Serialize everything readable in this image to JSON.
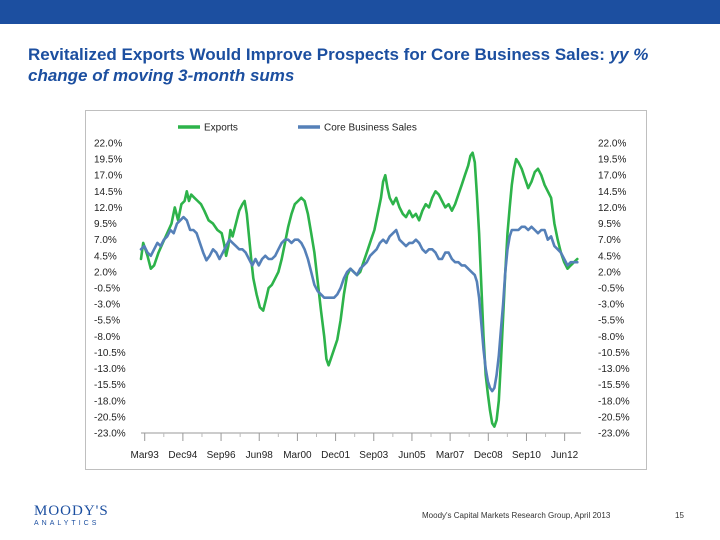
{
  "slide": {
    "title_main": "Revitalized Exports Would Improve Prospects for Core Business Sales: ",
    "title_sub": "yy % change of moving 3-month sums",
    "footer_source": "Moody's Capital Markets Research Group, April 2013",
    "page_number": "15",
    "logo_main": "MOODY'S",
    "logo_sub": "ANALYTICS",
    "accent_color": "#1c4fa0"
  },
  "chart_data": {
    "type": "line",
    "title": "",
    "xlabel": "",
    "ylabel": "",
    "ylim": [
      -23.0,
      22.0
    ],
    "y_ticks": [
      "22.0%",
      "19.5%",
      "17.0%",
      "14.5%",
      "12.0%",
      "9.5%",
      "7.0%",
      "4.5%",
      "2.0%",
      "-0.5%",
      "-3.0%",
      "-5.5%",
      "-8.0%",
      "-10.5%",
      "-13.0%",
      "-15.5%",
      "-18.0%",
      "-20.5%",
      "-23.0%"
    ],
    "y_tick_values": [
      22.0,
      19.5,
      17.0,
      14.5,
      12.0,
      9.5,
      7.0,
      4.5,
      2.0,
      -0.5,
      -3.0,
      -5.5,
      -8.0,
      -10.5,
      -13.0,
      -15.5,
      -18.0,
      -20.5,
      -23.0
    ],
    "x_range": [
      1993.0,
      2013.17
    ],
    "x_ticks": [
      {
        "label": "Mar93",
        "x": 1993.17
      },
      {
        "label": "Dec94",
        "x": 1994.92
      },
      {
        "label": "Sep96",
        "x": 1996.67
      },
      {
        "label": "Jun98",
        "x": 1998.42
      },
      {
        "label": "Mar00",
        "x": 2000.17
      },
      {
        "label": "Dec01",
        "x": 2001.92
      },
      {
        "label": "Sep03",
        "x": 2003.67
      },
      {
        "label": "Jun05",
        "x": 2005.42
      },
      {
        "label": "Mar07",
        "x": 2007.17
      },
      {
        "label": "Dec08",
        "x": 2008.92
      },
      {
        "label": "Sep10",
        "x": 2010.67
      },
      {
        "label": "Jun12",
        "x": 2012.42
      }
    ],
    "legend_position": "top",
    "series": [
      {
        "name": "Exports",
        "color": "#2db34a",
        "points": [
          [
            1993.0,
            4.0
          ],
          [
            1993.1,
            6.5
          ],
          [
            1993.2,
            5.5
          ],
          [
            1993.3,
            4.5
          ],
          [
            1993.45,
            2.5
          ],
          [
            1993.6,
            3.0
          ],
          [
            1993.8,
            5.0
          ],
          [
            1994.0,
            6.5
          ],
          [
            1994.2,
            8.0
          ],
          [
            1994.4,
            9.5
          ],
          [
            1994.55,
            12.0
          ],
          [
            1994.7,
            10.0
          ],
          [
            1994.85,
            12.5
          ],
          [
            1995.0,
            13.0
          ],
          [
            1995.1,
            14.5
          ],
          [
            1995.2,
            13.0
          ],
          [
            1995.3,
            14.0
          ],
          [
            1995.45,
            13.5
          ],
          [
            1995.6,
            13.0
          ],
          [
            1995.75,
            12.5
          ],
          [
            1995.9,
            11.5
          ],
          [
            1996.1,
            10.0
          ],
          [
            1996.3,
            9.5
          ],
          [
            1996.5,
            8.5
          ],
          [
            1996.7,
            8.0
          ],
          [
            1996.8,
            6.5
          ],
          [
            1996.9,
            4.5
          ],
          [
            1997.0,
            6.0
          ],
          [
            1997.1,
            8.5
          ],
          [
            1997.2,
            7.5
          ],
          [
            1997.35,
            9.5
          ],
          [
            1997.5,
            11.5
          ],
          [
            1997.65,
            12.5
          ],
          [
            1997.75,
            13.0
          ],
          [
            1997.85,
            11.0
          ],
          [
            1997.95,
            7.5
          ],
          [
            1998.05,
            4.0
          ],
          [
            1998.15,
            1.0
          ],
          [
            1998.3,
            -1.5
          ],
          [
            1998.45,
            -3.5
          ],
          [
            1998.6,
            -4.0
          ],
          [
            1998.75,
            -2.0
          ],
          [
            1998.85,
            -0.5
          ],
          [
            1999.0,
            0.0
          ],
          [
            1999.15,
            1.0
          ],
          [
            1999.3,
            2.0
          ],
          [
            1999.45,
            4.0
          ],
          [
            1999.6,
            6.5
          ],
          [
            1999.75,
            9.0
          ],
          [
            1999.9,
            11.0
          ],
          [
            2000.05,
            12.5
          ],
          [
            2000.2,
            13.0
          ],
          [
            2000.35,
            13.5
          ],
          [
            2000.5,
            13.0
          ],
          [
            2000.65,
            11.0
          ],
          [
            2000.8,
            8.0
          ],
          [
            2000.95,
            5.0
          ],
          [
            2001.1,
            0.5
          ],
          [
            2001.25,
            -4.0
          ],
          [
            2001.4,
            -8.0
          ],
          [
            2001.5,
            -11.5
          ],
          [
            2001.6,
            -12.5
          ],
          [
            2001.7,
            -11.5
          ],
          [
            2001.85,
            -10.0
          ],
          [
            2002.0,
            -8.5
          ],
          [
            2002.15,
            -5.5
          ],
          [
            2002.3,
            -1.5
          ],
          [
            2002.45,
            1.5
          ],
          [
            2002.6,
            2.5
          ],
          [
            2002.75,
            2.0
          ],
          [
            2002.9,
            1.5
          ],
          [
            2003.05,
            2.0
          ],
          [
            2003.2,
            3.5
          ],
          [
            2003.4,
            5.5
          ],
          [
            2003.55,
            7.0
          ],
          [
            2003.7,
            8.5
          ],
          [
            2003.85,
            11.0
          ],
          [
            2004.0,
            13.5
          ],
          [
            2004.1,
            16.0
          ],
          [
            2004.2,
            17.0
          ],
          [
            2004.3,
            15.0
          ],
          [
            2004.4,
            13.5
          ],
          [
            2004.55,
            12.5
          ],
          [
            2004.7,
            13.5
          ],
          [
            2004.85,
            12.0
          ],
          [
            2005.0,
            11.0
          ],
          [
            2005.15,
            10.5
          ],
          [
            2005.3,
            11.5
          ],
          [
            2005.45,
            10.5
          ],
          [
            2005.6,
            11.0
          ],
          [
            2005.75,
            10.0
          ],
          [
            2005.9,
            11.5
          ],
          [
            2006.05,
            12.5
          ],
          [
            2006.2,
            12.0
          ],
          [
            2006.35,
            13.5
          ],
          [
            2006.5,
            14.5
          ],
          [
            2006.65,
            14.0
          ],
          [
            2006.8,
            13.0
          ],
          [
            2006.95,
            12.0
          ],
          [
            2007.1,
            12.5
          ],
          [
            2007.25,
            11.5
          ],
          [
            2007.4,
            12.5
          ],
          [
            2007.55,
            14.0
          ],
          [
            2007.7,
            15.5
          ],
          [
            2007.85,
            17.0
          ],
          [
            2008.0,
            18.5
          ],
          [
            2008.1,
            20.0
          ],
          [
            2008.2,
            20.5
          ],
          [
            2008.3,
            19.0
          ],
          [
            2008.4,
            14.0
          ],
          [
            2008.5,
            8.0
          ],
          [
            2008.6,
            0.0
          ],
          [
            2008.7,
            -8.0
          ],
          [
            2008.8,
            -14.0
          ],
          [
            2008.9,
            -17.0
          ],
          [
            2009.0,
            -19.5
          ],
          [
            2009.1,
            -21.5
          ],
          [
            2009.2,
            -22.0
          ],
          [
            2009.3,
            -21.0
          ],
          [
            2009.4,
            -18.0
          ],
          [
            2009.5,
            -12.0
          ],
          [
            2009.6,
            -5.0
          ],
          [
            2009.7,
            2.0
          ],
          [
            2009.8,
            8.0
          ],
          [
            2009.9,
            12.0
          ],
          [
            2010.0,
            15.5
          ],
          [
            2010.1,
            18.0
          ],
          [
            2010.2,
            19.5
          ],
          [
            2010.3,
            19.0
          ],
          [
            2010.45,
            18.0
          ],
          [
            2010.6,
            16.5
          ],
          [
            2010.75,
            15.0
          ],
          [
            2010.9,
            16.0
          ],
          [
            2011.05,
            17.5
          ],
          [
            2011.2,
            18.0
          ],
          [
            2011.35,
            17.0
          ],
          [
            2011.5,
            15.5
          ],
          [
            2011.65,
            14.5
          ],
          [
            2011.8,
            13.5
          ],
          [
            2011.95,
            9.5
          ],
          [
            2012.1,
            7.0
          ],
          [
            2012.25,
            5.0
          ],
          [
            2012.4,
            3.5
          ],
          [
            2012.55,
            2.5
          ],
          [
            2012.7,
            3.0
          ],
          [
            2012.85,
            3.5
          ],
          [
            2013.0,
            4.0
          ]
        ]
      },
      {
        "name": "Core Business Sales",
        "color": "#5580b8",
        "points": [
          [
            1993.0,
            5.5
          ],
          [
            1993.15,
            6.0
          ],
          [
            1993.3,
            5.0
          ],
          [
            1993.45,
            4.5
          ],
          [
            1993.6,
            5.5
          ],
          [
            1993.75,
            6.5
          ],
          [
            1993.9,
            6.0
          ],
          [
            1994.05,
            7.0
          ],
          [
            1994.2,
            7.5
          ],
          [
            1994.35,
            8.5
          ],
          [
            1994.5,
            8.0
          ],
          [
            1994.65,
            9.5
          ],
          [
            1994.8,
            10.0
          ],
          [
            1994.95,
            10.5
          ],
          [
            1995.1,
            10.0
          ],
          [
            1995.25,
            8.5
          ],
          [
            1995.4,
            8.5
          ],
          [
            1995.55,
            8.0
          ],
          [
            1995.7,
            6.5
          ],
          [
            1995.85,
            5.0
          ],
          [
            1996.0,
            3.8
          ],
          [
            1996.15,
            4.5
          ],
          [
            1996.3,
            5.5
          ],
          [
            1996.45,
            5.0
          ],
          [
            1996.6,
            4.0
          ],
          [
            1996.75,
            5.0
          ],
          [
            1996.9,
            6.0
          ],
          [
            1997.05,
            7.0
          ],
          [
            1997.2,
            6.5
          ],
          [
            1997.35,
            6.0
          ],
          [
            1997.5,
            5.5
          ],
          [
            1997.65,
            5.5
          ],
          [
            1997.8,
            5.0
          ],
          [
            1997.95,
            4.0
          ],
          [
            1998.1,
            3.0
          ],
          [
            1998.25,
            4.0
          ],
          [
            1998.4,
            3.0
          ],
          [
            1998.55,
            4.0
          ],
          [
            1998.7,
            4.5
          ],
          [
            1998.85,
            4.0
          ],
          [
            1999.0,
            4.0
          ],
          [
            1999.15,
            4.5
          ],
          [
            1999.3,
            5.5
          ],
          [
            1999.45,
            6.5
          ],
          [
            1999.6,
            7.0
          ],
          [
            1999.75,
            7.0
          ],
          [
            1999.9,
            6.5
          ],
          [
            2000.05,
            7.0
          ],
          [
            2000.2,
            7.0
          ],
          [
            2000.35,
            6.5
          ],
          [
            2000.5,
            5.5
          ],
          [
            2000.65,
            4.0
          ],
          [
            2000.8,
            2.0
          ],
          [
            2000.95,
            0.0
          ],
          [
            2001.1,
            -1.0
          ],
          [
            2001.25,
            -1.5
          ],
          [
            2001.4,
            -2.0
          ],
          [
            2001.55,
            -2.0
          ],
          [
            2001.7,
            -2.0
          ],
          [
            2001.85,
            -2.0
          ],
          [
            2002.0,
            -1.5
          ],
          [
            2002.15,
            -0.5
          ],
          [
            2002.3,
            1.0
          ],
          [
            2002.45,
            2.0
          ],
          [
            2002.6,
            2.5
          ],
          [
            2002.75,
            2.0
          ],
          [
            2002.9,
            1.5
          ],
          [
            2003.05,
            2.5
          ],
          [
            2003.2,
            3.0
          ],
          [
            2003.35,
            3.5
          ],
          [
            2003.5,
            4.5
          ],
          [
            2003.65,
            5.0
          ],
          [
            2003.8,
            5.5
          ],
          [
            2003.95,
            6.5
          ],
          [
            2004.1,
            7.0
          ],
          [
            2004.25,
            6.5
          ],
          [
            2004.4,
            7.5
          ],
          [
            2004.55,
            8.0
          ],
          [
            2004.7,
            8.5
          ],
          [
            2004.85,
            7.0
          ],
          [
            2005.0,
            6.5
          ],
          [
            2005.15,
            6.0
          ],
          [
            2005.3,
            6.5
          ],
          [
            2005.45,
            6.5
          ],
          [
            2005.6,
            7.0
          ],
          [
            2005.75,
            6.5
          ],
          [
            2005.9,
            5.5
          ],
          [
            2006.05,
            5.0
          ],
          [
            2006.2,
            5.5
          ],
          [
            2006.35,
            5.5
          ],
          [
            2006.5,
            5.0
          ],
          [
            2006.65,
            4.0
          ],
          [
            2006.8,
            4.0
          ],
          [
            2006.95,
            5.0
          ],
          [
            2007.1,
            5.0
          ],
          [
            2007.25,
            4.0
          ],
          [
            2007.4,
            3.5
          ],
          [
            2007.55,
            3.5
          ],
          [
            2007.7,
            3.0
          ],
          [
            2007.85,
            3.0
          ],
          [
            2008.0,
            2.5
          ],
          [
            2008.15,
            2.0
          ],
          [
            2008.3,
            1.5
          ],
          [
            2008.4,
            0.5
          ],
          [
            2008.5,
            -2.0
          ],
          [
            2008.6,
            -6.0
          ],
          [
            2008.7,
            -10.0
          ],
          [
            2008.8,
            -13.0
          ],
          [
            2008.9,
            -15.0
          ],
          [
            2009.0,
            -16.0
          ],
          [
            2009.1,
            -16.5
          ],
          [
            2009.2,
            -16.0
          ],
          [
            2009.3,
            -14.0
          ],
          [
            2009.4,
            -11.0
          ],
          [
            2009.5,
            -7.0
          ],
          [
            2009.6,
            -3.0
          ],
          [
            2009.7,
            2.0
          ],
          [
            2009.8,
            5.5
          ],
          [
            2009.9,
            7.5
          ],
          [
            2010.0,
            8.5
          ],
          [
            2010.15,
            8.5
          ],
          [
            2010.3,
            8.5
          ],
          [
            2010.45,
            9.0
          ],
          [
            2010.6,
            9.0
          ],
          [
            2010.75,
            8.5
          ],
          [
            2010.9,
            9.0
          ],
          [
            2011.05,
            8.5
          ],
          [
            2011.2,
            8.0
          ],
          [
            2011.35,
            8.5
          ],
          [
            2011.5,
            8.5
          ],
          [
            2011.65,
            7.0
          ],
          [
            2011.8,
            7.5
          ],
          [
            2011.95,
            6.0
          ],
          [
            2012.1,
            5.5
          ],
          [
            2012.25,
            5.0
          ],
          [
            2012.4,
            4.0
          ],
          [
            2012.55,
            3.0
          ],
          [
            2012.7,
            3.5
          ],
          [
            2012.85,
            3.5
          ],
          [
            2013.0,
            3.5
          ]
        ]
      }
    ]
  }
}
